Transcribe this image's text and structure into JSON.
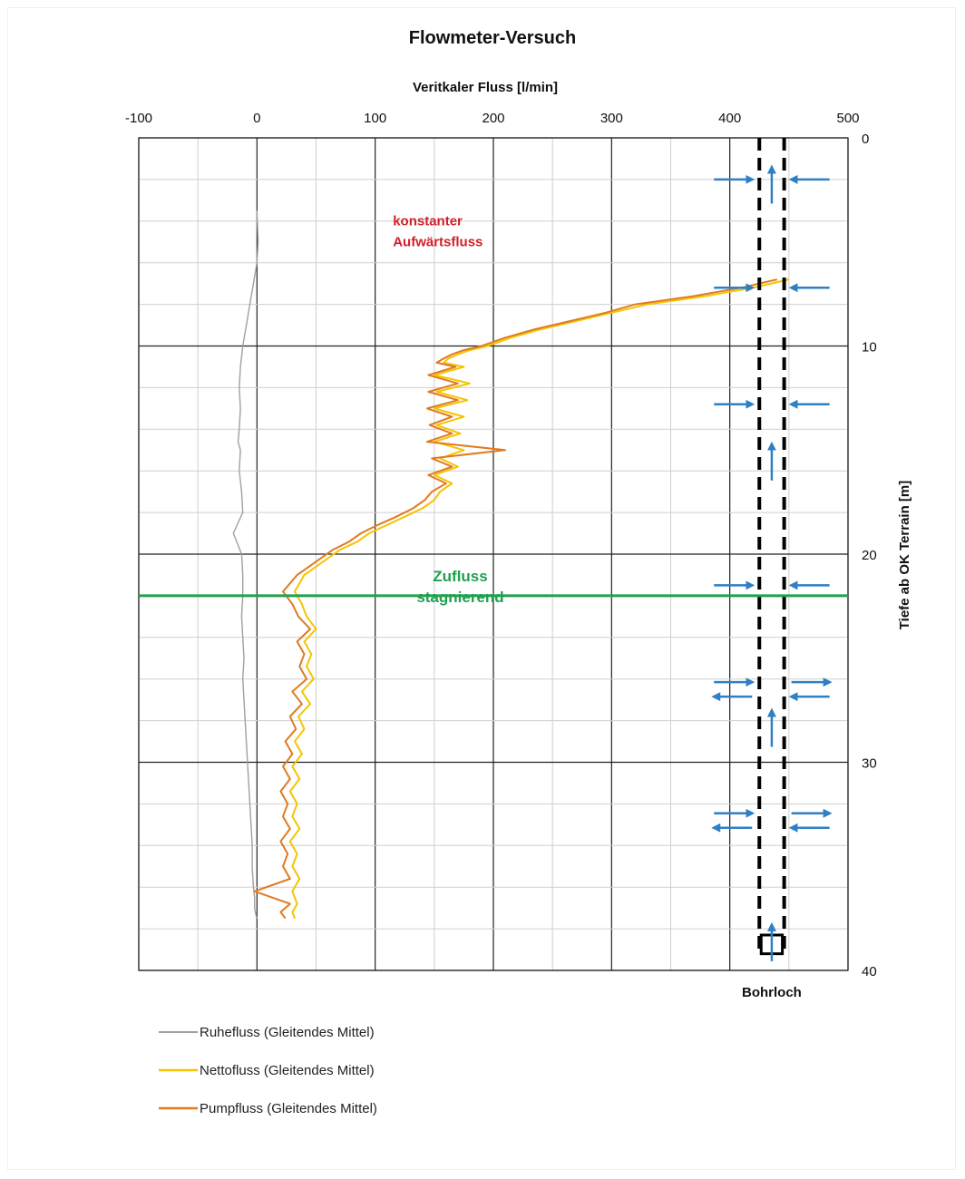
{
  "chart_data": {
    "type": "line",
    "title": "Flowmeter-Versuch",
    "xlabel": "Veritkaler Fluss [l/min]",
    "ylabel": "Tiefe ab OK Terrain [m]",
    "xlim": [
      -100,
      500
    ],
    "ylim": [
      0,
      40
    ],
    "y_inverted": true,
    "x_ticks": [
      -100,
      0,
      100,
      200,
      300,
      400,
      500
    ],
    "y_ticks": [
      0,
      10,
      20,
      30,
      40
    ],
    "grid": true,
    "legend_position": "bottom-left",
    "series": [
      {
        "name": "Ruhefluss (Gleitendes Mittel)",
        "color": "#a0a0a0",
        "x": [
          0,
          1,
          0,
          -3,
          -6,
          -9,
          -12,
          -14,
          -15,
          -14,
          -15,
          -16,
          -14,
          -15,
          -13,
          -12,
          -20,
          -13,
          -12,
          -12,
          -13,
          -12,
          -11,
          -12,
          -11,
          -10,
          -9,
          -8,
          -7,
          -6,
          -5,
          -4,
          -4,
          -3,
          -2,
          -2,
          -1,
          0
        ],
        "y": [
          3.5,
          5,
          6,
          7,
          8,
          9,
          10,
          11,
          12,
          13,
          14,
          14.6,
          15,
          16,
          17,
          18,
          19,
          20,
          21,
          22,
          23,
          24,
          25,
          26,
          27,
          28,
          29,
          30,
          31,
          32,
          33,
          34,
          35,
          36,
          36.5,
          37,
          37.3,
          37.5
        ]
      },
      {
        "name": "Nettofluss (Gleitendes Mittel)",
        "color": "#f5c400",
        "x": [
          450,
          420,
          380,
          330,
          300,
          270,
          240,
          215,
          195,
          180,
          170,
          162,
          158,
          175,
          150,
          180,
          152,
          178,
          150,
          175,
          152,
          172,
          150,
          175,
          155,
          170,
          150,
          165,
          155,
          150,
          140,
          125,
          110,
          95,
          85,
          70,
          60,
          50,
          40,
          32,
          38,
          42,
          50,
          40,
          46,
          42,
          48,
          38,
          45,
          35,
          40,
          32,
          38,
          30,
          36,
          28,
          34,
          30,
          36,
          28,
          34,
          30,
          36,
          30,
          34,
          30,
          32
        ],
        "y": [
          6.8,
          7.2,
          7.6,
          8.0,
          8.4,
          8.8,
          9.2,
          9.6,
          10.0,
          10.2,
          10.4,
          10.6,
          10.8,
          11.0,
          11.4,
          11.8,
          12.2,
          12.6,
          13.0,
          13.4,
          13.8,
          14.2,
          14.6,
          15.0,
          15.4,
          15.8,
          16.2,
          16.6,
          17.0,
          17.4,
          17.8,
          18.2,
          18.6,
          19.0,
          19.4,
          19.8,
          20.2,
          20.6,
          21.0,
          21.8,
          22.4,
          23.0,
          23.6,
          24.2,
          24.8,
          25.4,
          26.0,
          26.6,
          27.2,
          27.8,
          28.4,
          29.0,
          29.6,
          30.2,
          30.8,
          31.4,
          32.0,
          32.6,
          33.2,
          33.8,
          34.4,
          35.0,
          35.6,
          36.2,
          36.8,
          37.2,
          37.5
        ]
      },
      {
        "name": "Pumpfluss (Gleitendes Mittel)",
        "color": "#e07b20",
        "x": [
          440,
          410,
          370,
          320,
          295,
          265,
          235,
          210,
          190,
          175,
          165,
          158,
          152,
          168,
          145,
          170,
          145,
          170,
          144,
          165,
          146,
          165,
          144,
          210,
          148,
          165,
          145,
          160,
          148,
          142,
          132,
          118,
          102,
          88,
          78,
          64,
          54,
          44,
          34,
          22,
          30,
          35,
          45,
          34,
          40,
          36,
          42,
          30,
          38,
          28,
          33,
          24,
          30,
          22,
          28,
          20,
          26,
          22,
          28,
          20,
          26,
          22,
          28,
          -2,
          28,
          20,
          24
        ],
        "y": [
          6.8,
          7.2,
          7.6,
          8.0,
          8.4,
          8.8,
          9.2,
          9.6,
          10.0,
          10.2,
          10.4,
          10.6,
          10.8,
          11.0,
          11.4,
          11.8,
          12.2,
          12.6,
          13.0,
          13.4,
          13.8,
          14.2,
          14.6,
          15.0,
          15.4,
          15.8,
          16.2,
          16.6,
          17.0,
          17.4,
          17.8,
          18.2,
          18.6,
          19.0,
          19.4,
          19.8,
          20.2,
          20.6,
          21.0,
          21.8,
          22.4,
          23.0,
          23.6,
          24.2,
          24.8,
          25.4,
          26.0,
          26.6,
          27.2,
          27.8,
          28.4,
          29.0,
          29.6,
          30.2,
          30.8,
          31.4,
          32.0,
          32.6,
          33.2,
          33.8,
          34.4,
          35.0,
          35.6,
          36.2,
          36.8,
          37.2,
          37.5
        ]
      }
    ],
    "annotations": [
      {
        "text": "konstanter",
        "color": "#d1202a",
        "x": 115,
        "y": 4.2
      },
      {
        "text": "Aufwärtsfluss",
        "color": "#d1202a",
        "x": 115,
        "y": 5.2
      },
      {
        "text": "Zufluss",
        "color": "#20a050",
        "x": 172,
        "y": 21.3
      },
      {
        "text": "stagnierend",
        "color": "#20a050",
        "x": 172,
        "y": 22.3
      }
    ],
    "hline": {
      "y": 22,
      "color": "#20a050"
    },
    "borehole": {
      "label": "Bohrloch",
      "x_left": 425,
      "x_right": 446,
      "inflow_arrows_y": [
        2,
        7.2,
        12.8,
        21.5
      ],
      "exchange_arrows_y": [
        26.5,
        32.8
      ],
      "up_arrows_y": [
        2.2,
        15.5,
        28.3,
        38.6
      ],
      "arrow_color": "#2f7fc4"
    }
  }
}
